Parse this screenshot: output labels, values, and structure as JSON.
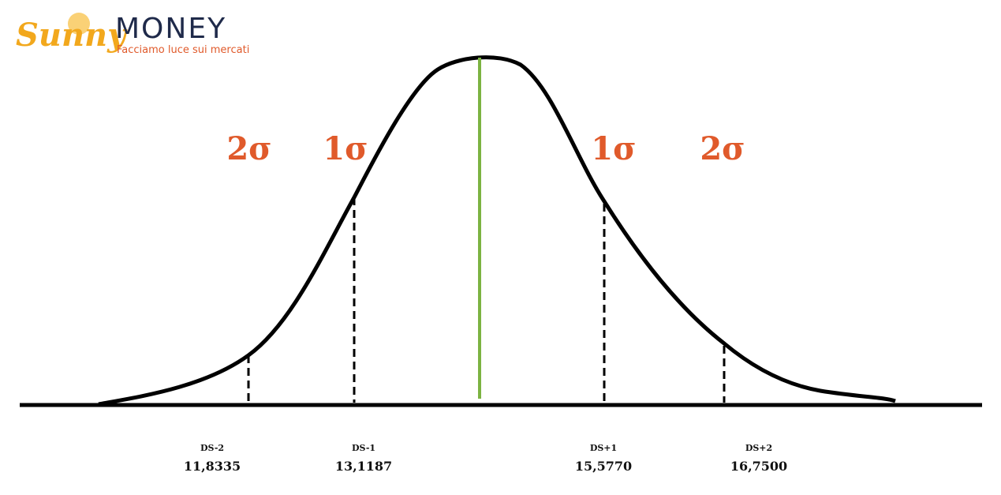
{
  "logo": {
    "brand": "Sunny",
    "name": "MONEY",
    "tagline": "Facciamo luce sui mercati"
  },
  "sigma_labels": [
    "2σ",
    "1σ",
    "1σ",
    "2σ"
  ],
  "markers": [
    {
      "label": "DS-2",
      "value": "11,8335"
    },
    {
      "label": "DS-1",
      "value": "13,1187"
    },
    {
      "label": "DS+1",
      "value": "15,5770"
    },
    {
      "label": "DS+2",
      "value": "16,7500"
    }
  ]
}
